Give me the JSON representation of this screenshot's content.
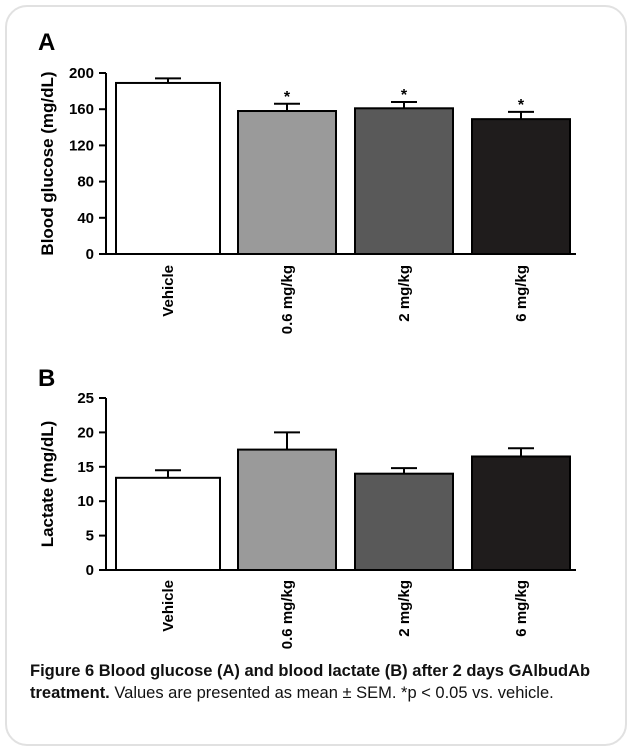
{
  "caption": {
    "title": "Figure 6 Blood glucose (A) and blood lactate (B) after 2 days GAlbudAb treatment.",
    "body": "Values are presented as mean ± SEM. *p < 0.05 vs. vehicle."
  },
  "colors": [
    "#ffffff",
    "#9a9a9a",
    "#595959",
    "#1f1c1c"
  ],
  "chart_data": [
    {
      "type": "bar",
      "panel": "A",
      "ylabel": "Blood glucose (mg/dL)",
      "ylim": [
        0,
        200
      ],
      "yticks": [
        "0",
        "40",
        "80",
        "120",
        "160",
        "200"
      ],
      "categories": [
        "Vehicle",
        "0.6 mg/kg",
        "2 mg/kg",
        "6 mg/kg"
      ],
      "values": [
        189,
        158,
        161,
        149
      ],
      "errors": [
        5,
        8,
        7,
        8
      ],
      "annotations": [
        "",
        "*",
        "*",
        "*"
      ]
    },
    {
      "type": "bar",
      "panel": "B",
      "ylabel": "Lactate (mg/dL)",
      "ylim": [
        0,
        25
      ],
      "yticks": [
        "0",
        "5",
        "10",
        "15",
        "20",
        "25"
      ],
      "categories": [
        "Vehicle",
        "0.6 mg/kg",
        "2 mg/kg",
        "6 mg/kg"
      ],
      "values": [
        13.4,
        17.5,
        14.0,
        16.5
      ],
      "errors": [
        1.1,
        2.5,
        0.8,
        1.2
      ],
      "annotations": [
        "",
        "",
        "",
        ""
      ]
    }
  ]
}
